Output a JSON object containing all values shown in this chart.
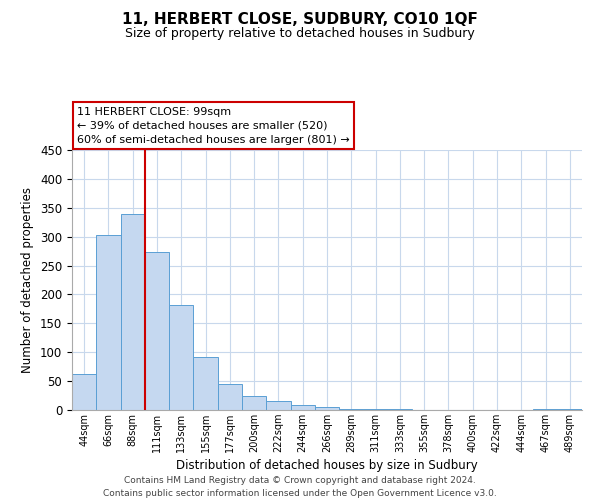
{
  "title": "11, HERBERT CLOSE, SUDBURY, CO10 1QF",
  "subtitle": "Size of property relative to detached houses in Sudbury",
  "xlabel": "Distribution of detached houses by size in Sudbury",
  "ylabel": "Number of detached properties",
  "bar_labels": [
    "44sqm",
    "66sqm",
    "88sqm",
    "111sqm",
    "133sqm",
    "155sqm",
    "177sqm",
    "200sqm",
    "222sqm",
    "244sqm",
    "266sqm",
    "289sqm",
    "311sqm",
    "333sqm",
    "355sqm",
    "378sqm",
    "400sqm",
    "422sqm",
    "444sqm",
    "467sqm",
    "489sqm"
  ],
  "bar_values": [
    62,
    303,
    340,
    274,
    182,
    91,
    45,
    24,
    16,
    8,
    5,
    1,
    1,
    1,
    0,
    0,
    0,
    0,
    0,
    1,
    1
  ],
  "bar_color": "#c5d8f0",
  "bar_edge_color": "#5a9fd4",
  "vline_color": "#cc0000",
  "ylim": [
    0,
    450
  ],
  "yticks": [
    0,
    50,
    100,
    150,
    200,
    250,
    300,
    350,
    400,
    450
  ],
  "annotation_title": "11 HERBERT CLOSE: 99sqm",
  "annotation_line1": "← 39% of detached houses are smaller (520)",
  "annotation_line2": "60% of semi-detached houses are larger (801) →",
  "footer_line1": "Contains HM Land Registry data © Crown copyright and database right 2024.",
  "footer_line2": "Contains public sector information licensed under the Open Government Licence v3.0.",
  "bg_color": "#ffffff",
  "grid_color": "#c8d8ec"
}
